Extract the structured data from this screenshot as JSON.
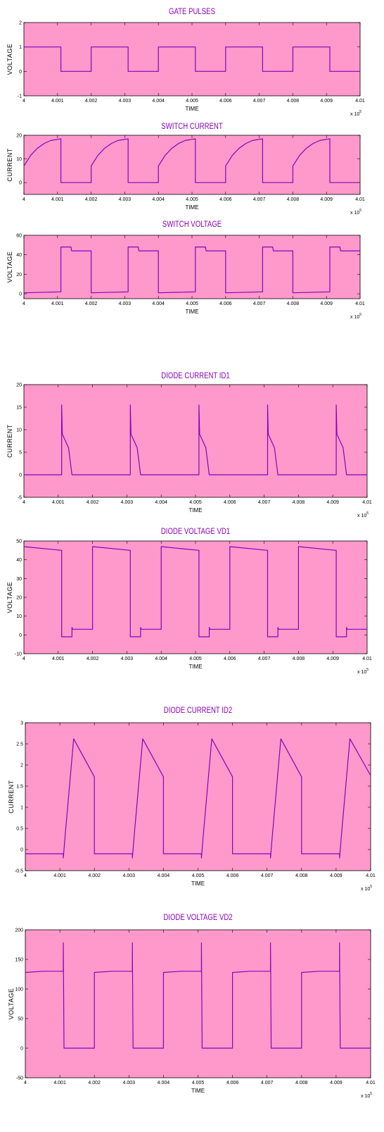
{
  "chart_data": [
    {
      "type": "line",
      "title": "GATE PULSES",
      "xlabel": "TIME",
      "ylabel": "VOLTAGE",
      "x_multiplier": "x 10",
      "x_multiplier_exp": "5",
      "xlim": [
        4,
        4.01
      ],
      "ylim": [
        -1,
        2
      ],
      "xticks": [
        "4",
        "4.001",
        "4.002",
        "4.003",
        "4.004",
        "4.005",
        "4.006",
        "4.007",
        "4.008",
        "4.009",
        "4.01"
      ],
      "yticks": [
        "-1",
        "0",
        "1",
        "2"
      ],
      "background": "#ff99cc",
      "line_color": "#8b00b8",
      "grid": false,
      "series": [
        {
          "x": [
            4,
            4.0011,
            4.0011,
            4.002,
            4.002,
            4.0031,
            4.0031,
            4.004,
            4.004,
            4.0051,
            4.0051,
            4.006,
            4.006,
            4.0071,
            4.0071,
            4.008,
            4.008,
            4.0091,
            4.0091,
            4.01
          ],
          "y": [
            1,
            1,
            0,
            0,
            1,
            1,
            0,
            0,
            1,
            1,
            0,
            0,
            1,
            1,
            0,
            0,
            1,
            1,
            0,
            0
          ]
        }
      ]
    },
    {
      "type": "line",
      "title": "SWITCH CURRENT",
      "xlabel": "TIME",
      "ylabel": "CURRENT",
      "x_multiplier": "x 10",
      "x_multiplier_exp": "5",
      "xlim": [
        4,
        4.01
      ],
      "ylim": [
        -5,
        20
      ],
      "xticks": [
        "4",
        "4.001",
        "4.002",
        "4.003",
        "4.004",
        "4.005",
        "4.006",
        "4.007",
        "4.008",
        "4.009",
        "4.01"
      ],
      "yticks": [
        "0",
        "10",
        "20"
      ],
      "background": "#ff99cc",
      "line_color": "#8b00b8",
      "grid": false,
      "series": [
        {
          "x": [
            4,
            4.0002,
            4.0004,
            4.0006,
            4.0008,
            4.0011,
            4.0011,
            4.002,
            4.002,
            4.0022,
            4.0024,
            4.0026,
            4.0028,
            4.0031,
            4.0031,
            4.004,
            4.004,
            4.0042,
            4.0044,
            4.0046,
            4.0048,
            4.0051,
            4.0051,
            4.006,
            4.006,
            4.0062,
            4.0064,
            4.0066,
            4.0068,
            4.0071,
            4.0071,
            4.008,
            4.008,
            4.0082,
            4.0084,
            4.0086,
            4.0088,
            4.0091,
            4.0091,
            4.01
          ],
          "y": [
            7,
            11.5,
            14.5,
            16.5,
            17.8,
            18.5,
            0,
            0,
            7,
            11.5,
            14.5,
            16.5,
            17.8,
            18.5,
            0,
            0,
            7,
            11.5,
            14.5,
            16.5,
            17.8,
            18.5,
            0,
            0,
            7,
            11.5,
            14.5,
            16.5,
            17.8,
            18.5,
            0,
            0,
            7,
            11.5,
            14.5,
            16.5,
            17.8,
            18.5,
            0,
            0
          ]
        }
      ]
    },
    {
      "type": "line",
      "title": "SWITCH VOLTAGE",
      "xlabel": "TIME",
      "ylabel": "VOLTAGE",
      "x_multiplier": "x 10",
      "x_multiplier_exp": "5",
      "xlim": [
        4,
        4.01
      ],
      "ylim": [
        -5,
        60
      ],
      "xticks": [
        "4",
        "4.001",
        "4.002",
        "4.003",
        "4.004",
        "4.005",
        "4.006",
        "4.007",
        "4.008",
        "4.009",
        "4.01"
      ],
      "yticks": [
        "0",
        "20",
        "40",
        "60"
      ],
      "background": "#ff99cc",
      "line_color": "#8b00b8",
      "grid": false,
      "series": [
        {
          "x": [
            4,
            4.0011,
            4.0011,
            4.0014,
            4.00142,
            4.002,
            4.002,
            4.0031,
            4.0031,
            4.0034,
            4.00342,
            4.004,
            4.004,
            4.0051,
            4.0051,
            4.0054,
            4.00542,
            4.006,
            4.006,
            4.0071,
            4.0071,
            4.0074,
            4.00742,
            4.008,
            4.008,
            4.0091,
            4.0091,
            4.0094,
            4.00942,
            4.01
          ],
          "y": [
            1,
            2,
            48,
            48,
            44,
            44,
            1,
            2,
            48,
            48,
            44,
            44,
            1,
            2,
            48,
            48,
            44,
            44,
            1,
            2,
            48,
            48,
            44,
            44,
            1,
            2,
            48,
            48,
            44,
            44
          ]
        }
      ]
    },
    {
      "type": "line",
      "title": "DIODE CURRENT ID1",
      "xlabel": "TIME",
      "ylabel": "CURRENT",
      "x_multiplier": "x 10",
      "x_multiplier_exp": "5",
      "xlim": [
        4,
        4.01
      ],
      "ylim": [
        -5,
        20
      ],
      "xticks": [
        "4",
        "4.001",
        "4.002",
        "4.003",
        "4.004",
        "4.005",
        "4.006",
        "4.007",
        "4.008",
        "4.009",
        "4.01"
      ],
      "yticks": [
        "-5",
        "0",
        "5",
        "10",
        "15",
        "20"
      ],
      "background": "#ff99cc",
      "line_color": "#8b00b8",
      "grid": false,
      "series": [
        {
          "x": [
            4,
            4.0011,
            4.0011,
            4.00112,
            4.0013,
            4.0014,
            4.0031,
            4.0031,
            4.00312,
            4.0033,
            4.0034,
            4.0051,
            4.0051,
            4.00512,
            4.0053,
            4.0054,
            4.0071,
            4.0071,
            4.00712,
            4.0073,
            4.0074,
            4.0091,
            4.0091,
            4.00912,
            4.0093,
            4.0094,
            4.01
          ],
          "y": [
            0,
            0,
            15.5,
            9,
            6,
            0,
            0,
            15.5,
            9,
            6,
            0,
            0,
            15.5,
            9,
            6,
            0,
            0,
            15.5,
            9,
            6,
            0,
            0,
            15.5,
            9,
            6,
            0,
            0
          ]
        }
      ]
    },
    {
      "type": "line",
      "title": "DIODE VOLTAGE VD1",
      "xlabel": "TIME",
      "ylabel": "VOLTAGE",
      "x_multiplier": "x 10",
      "x_multiplier_exp": "5",
      "xlim": [
        4,
        4.01
      ],
      "ylim": [
        -10,
        50
      ],
      "xticks": [
        "4",
        "4.001",
        "4.002",
        "4.003",
        "4.004",
        "4.005",
        "4.006",
        "4.007",
        "4.008",
        "4.009",
        "4.01"
      ],
      "yticks": [
        "-10",
        "0",
        "10",
        "20",
        "30",
        "40",
        "50"
      ],
      "background": "#ff99cc",
      "line_color": "#8b00b8",
      "grid": false,
      "series": [
        {
          "x": [
            4,
            4.0011,
            4.0011,
            4.0014,
            4.0014,
            4.00142,
            4.002,
            4.002,
            4.0031,
            4.0031,
            4.0034,
            4.0034,
            4.00342,
            4.004,
            4.004,
            4.0051,
            4.0051,
            4.0054,
            4.0054,
            4.00542,
            4.006,
            4.006,
            4.0071,
            4.0071,
            4.0074,
            4.0074,
            4.00742,
            4.008,
            4.008,
            4.0091,
            4.0091,
            4.0094,
            4.0094,
            4.00942,
            4.01
          ],
          "y": [
            47,
            45,
            -1,
            -1,
            4,
            3,
            3,
            47,
            45,
            -1,
            -1,
            4,
            3,
            3,
            47,
            45,
            -1,
            -1,
            4,
            3,
            3,
            47,
            45,
            -1,
            -1,
            4,
            3,
            3,
            47,
            45,
            -1,
            -1,
            4,
            3,
            3
          ]
        }
      ]
    },
    {
      "type": "line",
      "title": "DIODE CURRENT ID2",
      "xlabel": "TIME",
      "ylabel": "CURRENT",
      "x_multiplier": "x 10",
      "x_multiplier_exp": "5",
      "xlim": [
        4,
        4.01
      ],
      "ylim": [
        -0.5,
        3
      ],
      "xticks": [
        "4",
        "4.001",
        "4.002",
        "4.003",
        "4.004",
        "4.005",
        "4.006",
        "4.007",
        "4.008",
        "4.009",
        "4.01"
      ],
      "yticks": [
        "-0.5",
        "0",
        "0.5",
        "1",
        "1.5",
        "2",
        "2.5",
        "3"
      ],
      "background": "#ff99cc",
      "line_color": "#8b00b8",
      "grid": false,
      "series": [
        {
          "x": [
            4,
            4.0011,
            4.0011,
            4.00115,
            4.0014,
            4.002,
            4.002,
            4.0031,
            4.0031,
            4.00315,
            4.0034,
            4.004,
            4.004,
            4.0051,
            4.0051,
            4.00515,
            4.0054,
            4.006,
            4.006,
            4.0071,
            4.0071,
            4.00715,
            4.0074,
            4.008,
            4.008,
            4.0091,
            4.0091,
            4.00915,
            4.0094,
            4.01
          ],
          "y": [
            -0.1,
            -0.1,
            -0.2,
            0.3,
            2.62,
            1.72,
            -0.1,
            -0.1,
            -0.2,
            0.3,
            2.62,
            1.72,
            -0.1,
            -0.1,
            -0.2,
            0.3,
            2.62,
            1.72,
            -0.1,
            -0.1,
            -0.2,
            0.3,
            2.62,
            1.72,
            -0.1,
            -0.1,
            -0.2,
            0.3,
            2.62,
            1.75
          ]
        }
      ]
    },
    {
      "type": "line",
      "title": "DIODE VOLTAGE VD2",
      "xlabel": "TIME",
      "ylabel": "VOLTAGE",
      "x_multiplier": "x 10",
      "x_multiplier_exp": "5",
      "xlim": [
        4,
        4.01
      ],
      "ylim": [
        -50,
        200
      ],
      "xticks": [
        "4",
        "4.001",
        "4.002",
        "4.003",
        "4.004",
        "4.005",
        "4.006",
        "4.007",
        "4.008",
        "4.009",
        "4.01"
      ],
      "yticks": [
        "-50",
        "0",
        "50",
        "100",
        "150",
        "200"
      ],
      "background": "#ff99cc",
      "line_color": "#8b00b8",
      "grid": false,
      "series": [
        {
          "x": [
            4,
            4.0005,
            4.0011,
            4.0011,
            4.00112,
            4.0012,
            4.002,
            4.002,
            4.0025,
            4.0031,
            4.0031,
            4.00312,
            4.0032,
            4.004,
            4.004,
            4.0045,
            4.0051,
            4.0051,
            4.00512,
            4.0052,
            4.006,
            4.006,
            4.0065,
            4.0071,
            4.0071,
            4.00712,
            4.0072,
            4.008,
            4.008,
            4.0085,
            4.0091,
            4.0091,
            4.00912,
            4.0092,
            4.01
          ],
          "y": [
            128,
            130,
            130,
            178,
            0,
            0,
            0,
            128,
            130,
            130,
            178,
            0,
            0,
            0,
            128,
            130,
            130,
            178,
            0,
            0,
            0,
            128,
            130,
            130,
            178,
            0,
            0,
            0,
            128,
            130,
            130,
            178,
            0,
            0,
            0
          ]
        }
      ]
    }
  ]
}
